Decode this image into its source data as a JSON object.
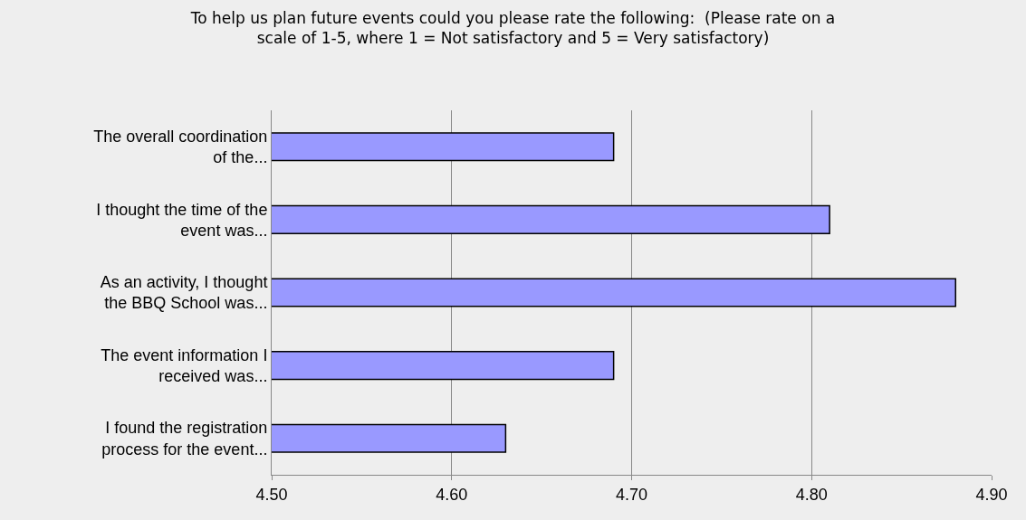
{
  "chart_data": {
    "type": "bar",
    "orientation": "horizontal",
    "title": "To help us plan future events could you please rate the following:  (Please rate on a scale of 1-5, where 1 = Not satisfactory and 5 = Very satisfactory)",
    "categories": [
      "The overall coordination of the...",
      "I thought the time of the event was...",
      "As an activity, I thought the BBQ School was...",
      "The event information I received was...",
      "I found the registration process for the event..."
    ],
    "values": [
      4.69,
      4.81,
      4.88,
      4.69,
      4.63
    ],
    "color": "#9999ff",
    "xlim": [
      4.5,
      4.9
    ],
    "xticks": [
      {
        "value": 4.5,
        "label": "4.50"
      },
      {
        "value": 4.6,
        "label": "4.60"
      },
      {
        "value": 4.7,
        "label": "4.70"
      },
      {
        "value": 4.8,
        "label": "4.80"
      },
      {
        "value": 4.9,
        "label": "4.90"
      }
    ],
    "grid": "x",
    "legend": false
  }
}
